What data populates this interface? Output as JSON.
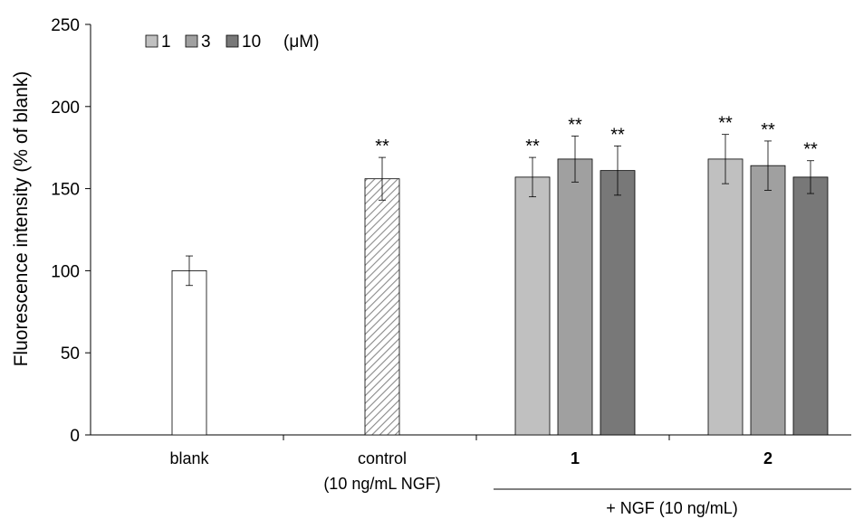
{
  "chart_data": {
    "type": "bar",
    "ylabel": "Fluorescence intensity (% of blank)",
    "ylim": [
      0,
      250
    ],
    "yticks": [
      0,
      50,
      100,
      150,
      200,
      250
    ],
    "legend": {
      "position": "top-left",
      "entries": [
        "1",
        "3",
        "10"
      ],
      "unit": "(μM)"
    },
    "colors": {
      "blank": "#ffffff",
      "control": "hatched",
      "c1": "#c0c0c0",
      "c3": "#a0a0a0",
      "c10": "#787878"
    },
    "groups": [
      {
        "label": "blank",
        "sublabel": "",
        "bold": false,
        "bars": [
          {
            "series": "blank",
            "value": 100,
            "error": 9,
            "sig": ""
          }
        ]
      },
      {
        "label": "control",
        "sublabel": "(10 ng/mL NGF)",
        "bold": false,
        "bars": [
          {
            "series": "control",
            "value": 156,
            "error": 13,
            "sig": "**"
          }
        ]
      },
      {
        "label": "1",
        "sublabel": "",
        "bold": true,
        "bars": [
          {
            "series": "1",
            "value": 157,
            "error": 12,
            "sig": "**"
          },
          {
            "series": "3",
            "value": 168,
            "error": 14,
            "sig": "**"
          },
          {
            "series": "10",
            "value": 161,
            "error": 15,
            "sig": "**"
          }
        ]
      },
      {
        "label": "2",
        "sublabel": "",
        "bold": true,
        "bars": [
          {
            "series": "1",
            "value": 168,
            "error": 15,
            "sig": "**"
          },
          {
            "series": "3",
            "value": 164,
            "error": 15,
            "sig": "**"
          },
          {
            "series": "10",
            "value": 157,
            "error": 10,
            "sig": "**"
          }
        ]
      }
    ],
    "bracket_label": "+ NGF (10 ng/mL)"
  }
}
